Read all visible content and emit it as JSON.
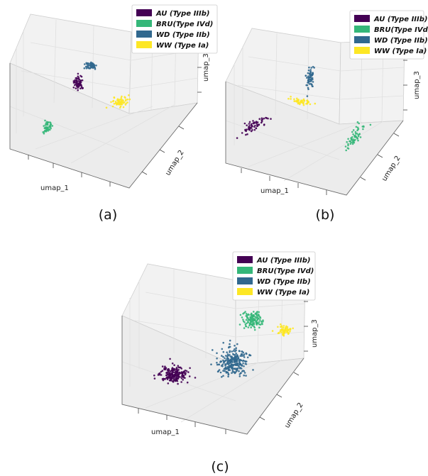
{
  "colors": {
    "AU": "#440154",
    "BRU": "#35b779",
    "WD": "#31688e",
    "WW": "#fde725"
  },
  "legend_items": [
    {
      "key": "AU",
      "label": "AU (Type IIIb)"
    },
    {
      "key": "BRU",
      "label": "BRU(Type IVd)"
    },
    {
      "key": "WD",
      "label": "WD (Type IIb)"
    },
    {
      "key": "WW",
      "label": "WW (Type Ia)"
    }
  ],
  "axis_labels": {
    "x": "umap_1",
    "y": "umap_2",
    "z": "umap_3"
  },
  "chart_data": [
    {
      "type": "scatter",
      "caption": "(a)",
      "xlabel": "umap_1",
      "ylabel": "umap_2",
      "zlabel": "umap_3",
      "grid": true,
      "legend": "top-right",
      "series": [
        {
          "name": "AU (Type IIIb)",
          "key": "AU",
          "n": 60
        },
        {
          "name": "BRU(Type IVd)",
          "key": "BRU",
          "n": 50
        },
        {
          "name": "WD (Type IIb)",
          "key": "WD",
          "n": 55
        },
        {
          "name": "WW (Type Ia)",
          "key": "WW",
          "n": 70
        }
      ]
    },
    {
      "type": "scatter",
      "caption": "(b)",
      "xlabel": "umap_1",
      "ylabel": "umap_2",
      "zlabel": "umap_3",
      "grid": true,
      "legend": "top-right",
      "series": [
        {
          "name": "AU (Type IIIb)",
          "key": "AU",
          "n": 60
        },
        {
          "name": "BRU(Type IVd)",
          "key": "BRU",
          "n": 60
        },
        {
          "name": "WD (Type IIb)",
          "key": "WD",
          "n": 60
        },
        {
          "name": "WW (Type Ia)",
          "key": "WW",
          "n": 50
        }
      ]
    },
    {
      "type": "scatter",
      "caption": "(c)",
      "xlabel": "umap_1",
      "ylabel": "umap_2",
      "zlabel": "umap_3",
      "grid": true,
      "legend": "top-right",
      "series": [
        {
          "name": "AU (Type IIIb)",
          "key": "AU",
          "n": 220
        },
        {
          "name": "BRU(Type IVd)",
          "key": "BRU",
          "n": 130
        },
        {
          "name": "WD (Type IIb)",
          "key": "WD",
          "n": 260
        },
        {
          "name": "WW (Type Ia)",
          "key": "WW",
          "n": 60
        }
      ]
    }
  ]
}
